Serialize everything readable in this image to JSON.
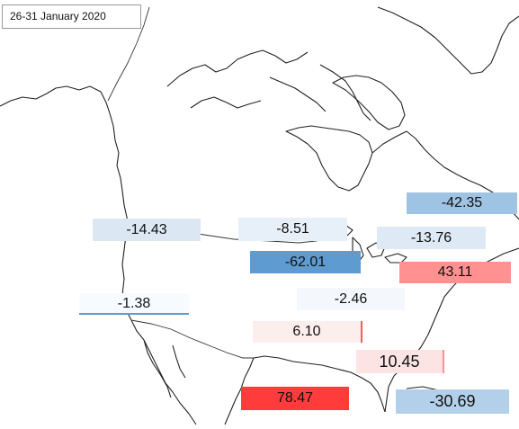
{
  "title": "26-31 January 2020",
  "regions": [
    {
      "id": "northeast-canada",
      "value": "-42.35",
      "color": "#9fc3e3"
    },
    {
      "id": "western-canada",
      "value": "-14.43",
      "color": "#dbe8f3"
    },
    {
      "id": "north-central",
      "value": "-8.51",
      "color": "#e7f0f8"
    },
    {
      "id": "great-lakes-east",
      "value": "-13.76",
      "color": "#dde9f4"
    },
    {
      "id": "midwest",
      "value": "-62.01",
      "color": "#5e9bd0"
    },
    {
      "id": "northeast-us",
      "value": "43.11",
      "color": "#ff9191"
    },
    {
      "id": "west-us",
      "value": "-1.38",
      "color": "#f8fbfd"
    },
    {
      "id": "ohio-valley",
      "value": "-2.46",
      "color": "#f4f8fc"
    },
    {
      "id": "south-central",
      "value": "6.10",
      "color": "#fdeeee"
    },
    {
      "id": "southeast-us",
      "value": "10.45",
      "color": "#fde4e4"
    },
    {
      "id": "mexico",
      "value": "78.47",
      "color": "#ff3b3b"
    },
    {
      "id": "caribbean",
      "value": "-30.69",
      "color": "#b3d0ea"
    }
  ]
}
